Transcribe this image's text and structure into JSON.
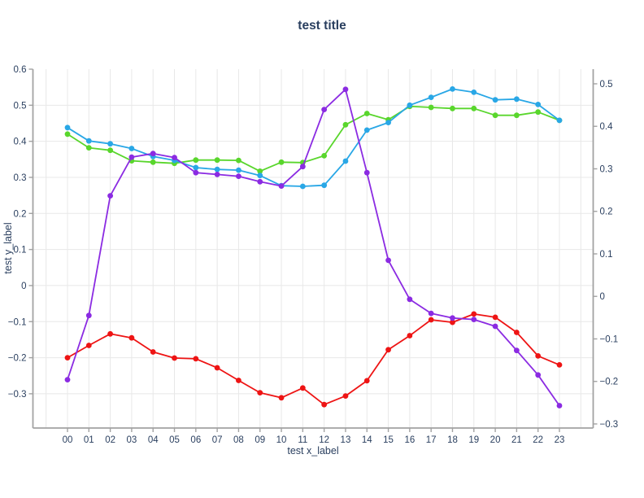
{
  "chart_data": {
    "type": "line",
    "title": "test title",
    "xlabel": "test x_label",
    "ylabel": "test y_label",
    "x": [
      "00",
      "01",
      "02",
      "03",
      "04",
      "05",
      "06",
      "07",
      "08",
      "09",
      "10",
      "11",
      "12",
      "13",
      "14",
      "15",
      "16",
      "17",
      "18",
      "19",
      "20",
      "21",
      "22",
      "23"
    ],
    "series": [
      {
        "name": "red",
        "color": "#ee1414",
        "values": [
          -0.2,
          -0.166,
          -0.134,
          -0.145,
          -0.184,
          -0.201,
          -0.203,
          -0.228,
          -0.263,
          -0.297,
          -0.311,
          -0.284,
          -0.33,
          -0.306,
          -0.264,
          -0.178,
          -0.139,
          -0.095,
          -0.102,
          -0.079,
          -0.088,
          -0.13,
          -0.195,
          -0.22
        ]
      },
      {
        "name": "green",
        "color": "#59d62c",
        "values": [
          0.42,
          0.382,
          0.375,
          0.346,
          0.342,
          0.339,
          0.348,
          0.348,
          0.347,
          0.317,
          0.342,
          0.341,
          0.36,
          0.446,
          0.477,
          0.46,
          0.497,
          0.494,
          0.491,
          0.491,
          0.472,
          0.472,
          0.481,
          0.458
        ]
      },
      {
        "name": "blue",
        "color": "#29a7e6",
        "values": [
          0.438,
          0.401,
          0.393,
          0.38,
          0.358,
          0.347,
          0.327,
          0.322,
          0.32,
          0.305,
          0.277,
          0.275,
          0.278,
          0.345,
          0.431,
          0.452,
          0.5,
          0.522,
          0.545,
          0.536,
          0.515,
          0.517,
          0.502,
          0.458
        ]
      },
      {
        "name": "purple",
        "color": "#8b2be2",
        "values": [
          -0.261,
          -0.083,
          0.249,
          0.356,
          0.366,
          0.355,
          0.313,
          0.308,
          0.303,
          0.288,
          0.276,
          0.33,
          0.488,
          0.544,
          0.313,
          0.07,
          -0.038,
          -0.077,
          -0.09,
          -0.094,
          -0.113,
          -0.18,
          -0.248,
          -0.333
        ]
      }
    ],
    "left_axis": {
      "tick_values": [
        0.6,
        0.5,
        0.4,
        0.3,
        0.2,
        0.1,
        0,
        -0.1,
        -0.2,
        -0.3
      ],
      "tick_labels": [
        "0.6",
        "0.5",
        "0.4",
        "0.3",
        "0.2",
        "0.1",
        "0",
        "−0.1",
        "−0.2",
        "−0.3"
      ],
      "range": [
        -0.395,
        0.6
      ]
    },
    "right_axis": {
      "tick_values": [
        0.5,
        0.4,
        0.3,
        0.2,
        0.1,
        0,
        -0.1,
        -0.2,
        -0.3
      ],
      "tick_labels": [
        "0.5",
        "0.4",
        "0.3",
        "0.2",
        "0.1",
        "0",
        "−0.1",
        "−0.2",
        "−0.3"
      ],
      "range": [
        -0.3096,
        0.5344
      ]
    },
    "grid": true,
    "legend": false,
    "colors": {
      "text": "#2a3f5f",
      "grid": "#e8e8e8",
      "axis": "#a2a2a2",
      "background": "#ffffff"
    }
  }
}
